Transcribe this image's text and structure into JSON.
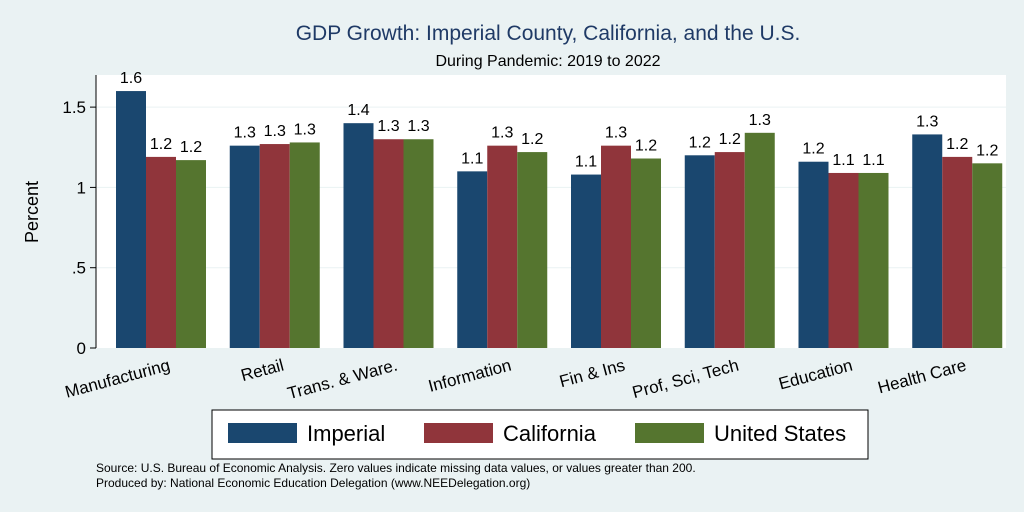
{
  "colors": {
    "background": "#eaf2f3",
    "plot_background": "#ffffff",
    "title": "#1f3a66",
    "imperial": "#1a476f",
    "california": "#90353b",
    "united_states": "#55752f"
  },
  "chart_data": {
    "type": "bar",
    "title": "GDP Growth: Imperial County, California, and the U.S.",
    "subtitle": "During Pandemic: 2019 to 2022",
    "xlabel": "",
    "ylabel": "Percent",
    "ylim": [
      0,
      1.7
    ],
    "yticks": [
      0,
      0.5,
      1,
      1.5
    ],
    "ytick_labels": [
      "0",
      ".5",
      "1",
      "1.5"
    ],
    "grid": true,
    "legend_position": "bottom",
    "categories": [
      "Manufacturing",
      "Retail",
      "Trans. & Ware.",
      "Information",
      "Fin & Ins",
      "Prof, Sci, Tech",
      "Education",
      "Health Care"
    ],
    "series": [
      {
        "name": "Imperial",
        "color": "#1a476f",
        "values": [
          1.6,
          1.26,
          1.4,
          1.1,
          1.08,
          1.2,
          1.16,
          1.33
        ],
        "labels": [
          "1.6",
          "1.3",
          "1.4",
          "1.1",
          "1.1",
          "1.2",
          "1.2",
          "1.3"
        ]
      },
      {
        "name": "California",
        "color": "#90353b",
        "values": [
          1.19,
          1.27,
          1.3,
          1.26,
          1.26,
          1.22,
          1.09,
          1.19
        ],
        "labels": [
          "1.2",
          "1.3",
          "1.3",
          "1.3",
          "1.3",
          "1.2",
          "1.1",
          "1.2"
        ]
      },
      {
        "name": "United States",
        "color": "#55752f",
        "values": [
          1.17,
          1.28,
          1.3,
          1.22,
          1.18,
          1.34,
          1.09,
          1.15
        ],
        "labels": [
          "1.2",
          "1.3",
          "1.3",
          "1.2",
          "1.2",
          "1.3",
          "1.1",
          "1.2"
        ]
      }
    ]
  },
  "footer": {
    "source": "Source: U.S. Bureau of Economic Analysis. Zero values indicate missing data values, or values greater than 200.",
    "produced_by": "Produced by: National Economic Education Delegation (www.NEEDelegation.org)"
  }
}
